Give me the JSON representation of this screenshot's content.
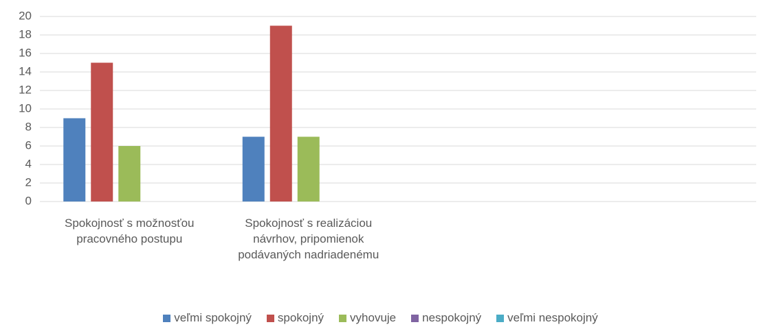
{
  "chart_data": {
    "type": "bar",
    "categories": [
      "Spokojnosť s možnosťou pracovného postupu",
      "Spokojnosť s realizáciou návrhov, pripomienok podávaných nadriadenému",
      null,
      null
    ],
    "series": [
      {
        "name": "veľmi spokojný",
        "color": "#4f81bd",
        "values": [
          9,
          7,
          null,
          null
        ]
      },
      {
        "name": "spokojný",
        "color": "#c0504d",
        "values": [
          15,
          19,
          null,
          null
        ]
      },
      {
        "name": "vyhovuje",
        "color": "#9bbb59",
        "values": [
          6,
          7,
          null,
          null
        ]
      },
      {
        "name": "nespokojný",
        "color": "#8064a2",
        "values": [
          0,
          0,
          null,
          null
        ]
      },
      {
        "name": "veľmi nespokojný",
        "color": "#4bacc6",
        "values": [
          0,
          0,
          null,
          null
        ]
      }
    ],
    "ylim": [
      0,
      20
    ],
    "yticks": [
      0,
      2,
      4,
      6,
      8,
      10,
      12,
      14,
      16,
      18,
      20
    ],
    "grid": true,
    "legend": "bottom"
  }
}
